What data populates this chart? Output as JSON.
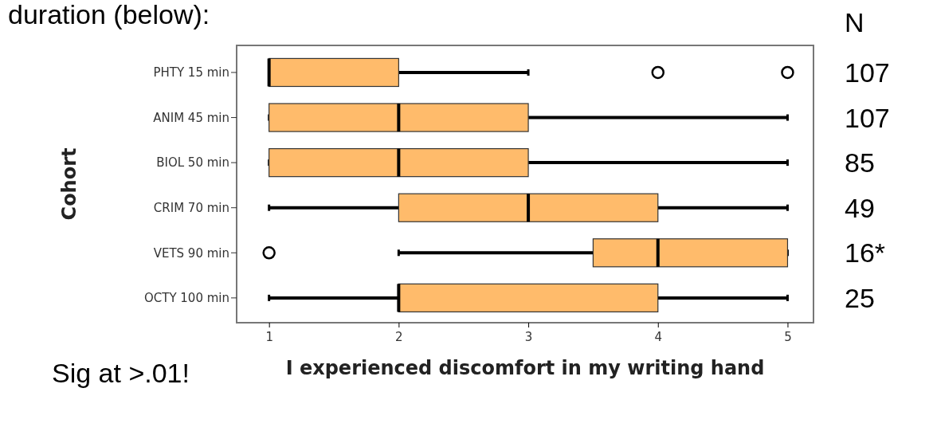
{
  "chart_data": {
    "type": "box",
    "orientation": "horizontal",
    "xlabel": "I experienced discomfort in my writing hand",
    "ylabel": "Cohort",
    "categories": [
      "PHTY 15 min",
      "ANIM 45 min",
      "BIOL 50 min",
      "CRIM 70 min",
      "VETS 90 min",
      "OCTY 100 min"
    ],
    "color": "#ffbb6b",
    "boxes": [
      {
        "low": 1,
        "q1": 1,
        "median": 1,
        "q3": 2,
        "high": 3,
        "outliers": [
          4,
          5
        ]
      },
      {
        "low": 1,
        "q1": 1,
        "median": 2,
        "q3": 3,
        "high": 5
      },
      {
        "low": 1,
        "q1": 1,
        "median": 2,
        "q3": 3,
        "high": 5
      },
      {
        "low": 1,
        "q1": 2,
        "median": 3,
        "q3": 4,
        "high": 5
      },
      {
        "low": 2,
        "q1": 3.5,
        "median": 4,
        "q3": 5,
        "high": 5,
        "outliers": [
          1
        ]
      },
      {
        "low": 1,
        "q1": 2,
        "median": 2,
        "q3": 4,
        "high": 5
      }
    ],
    "xlim": [
      0.75,
      5.2
    ],
    "xticks": [
      1,
      2,
      3,
      4,
      5
    ],
    "grid": false,
    "annotations": [
      "duration (below):",
      "N",
      "107",
      "107",
      "85",
      "49",
      "16*",
      "25",
      "Sig at >.01!"
    ]
  }
}
